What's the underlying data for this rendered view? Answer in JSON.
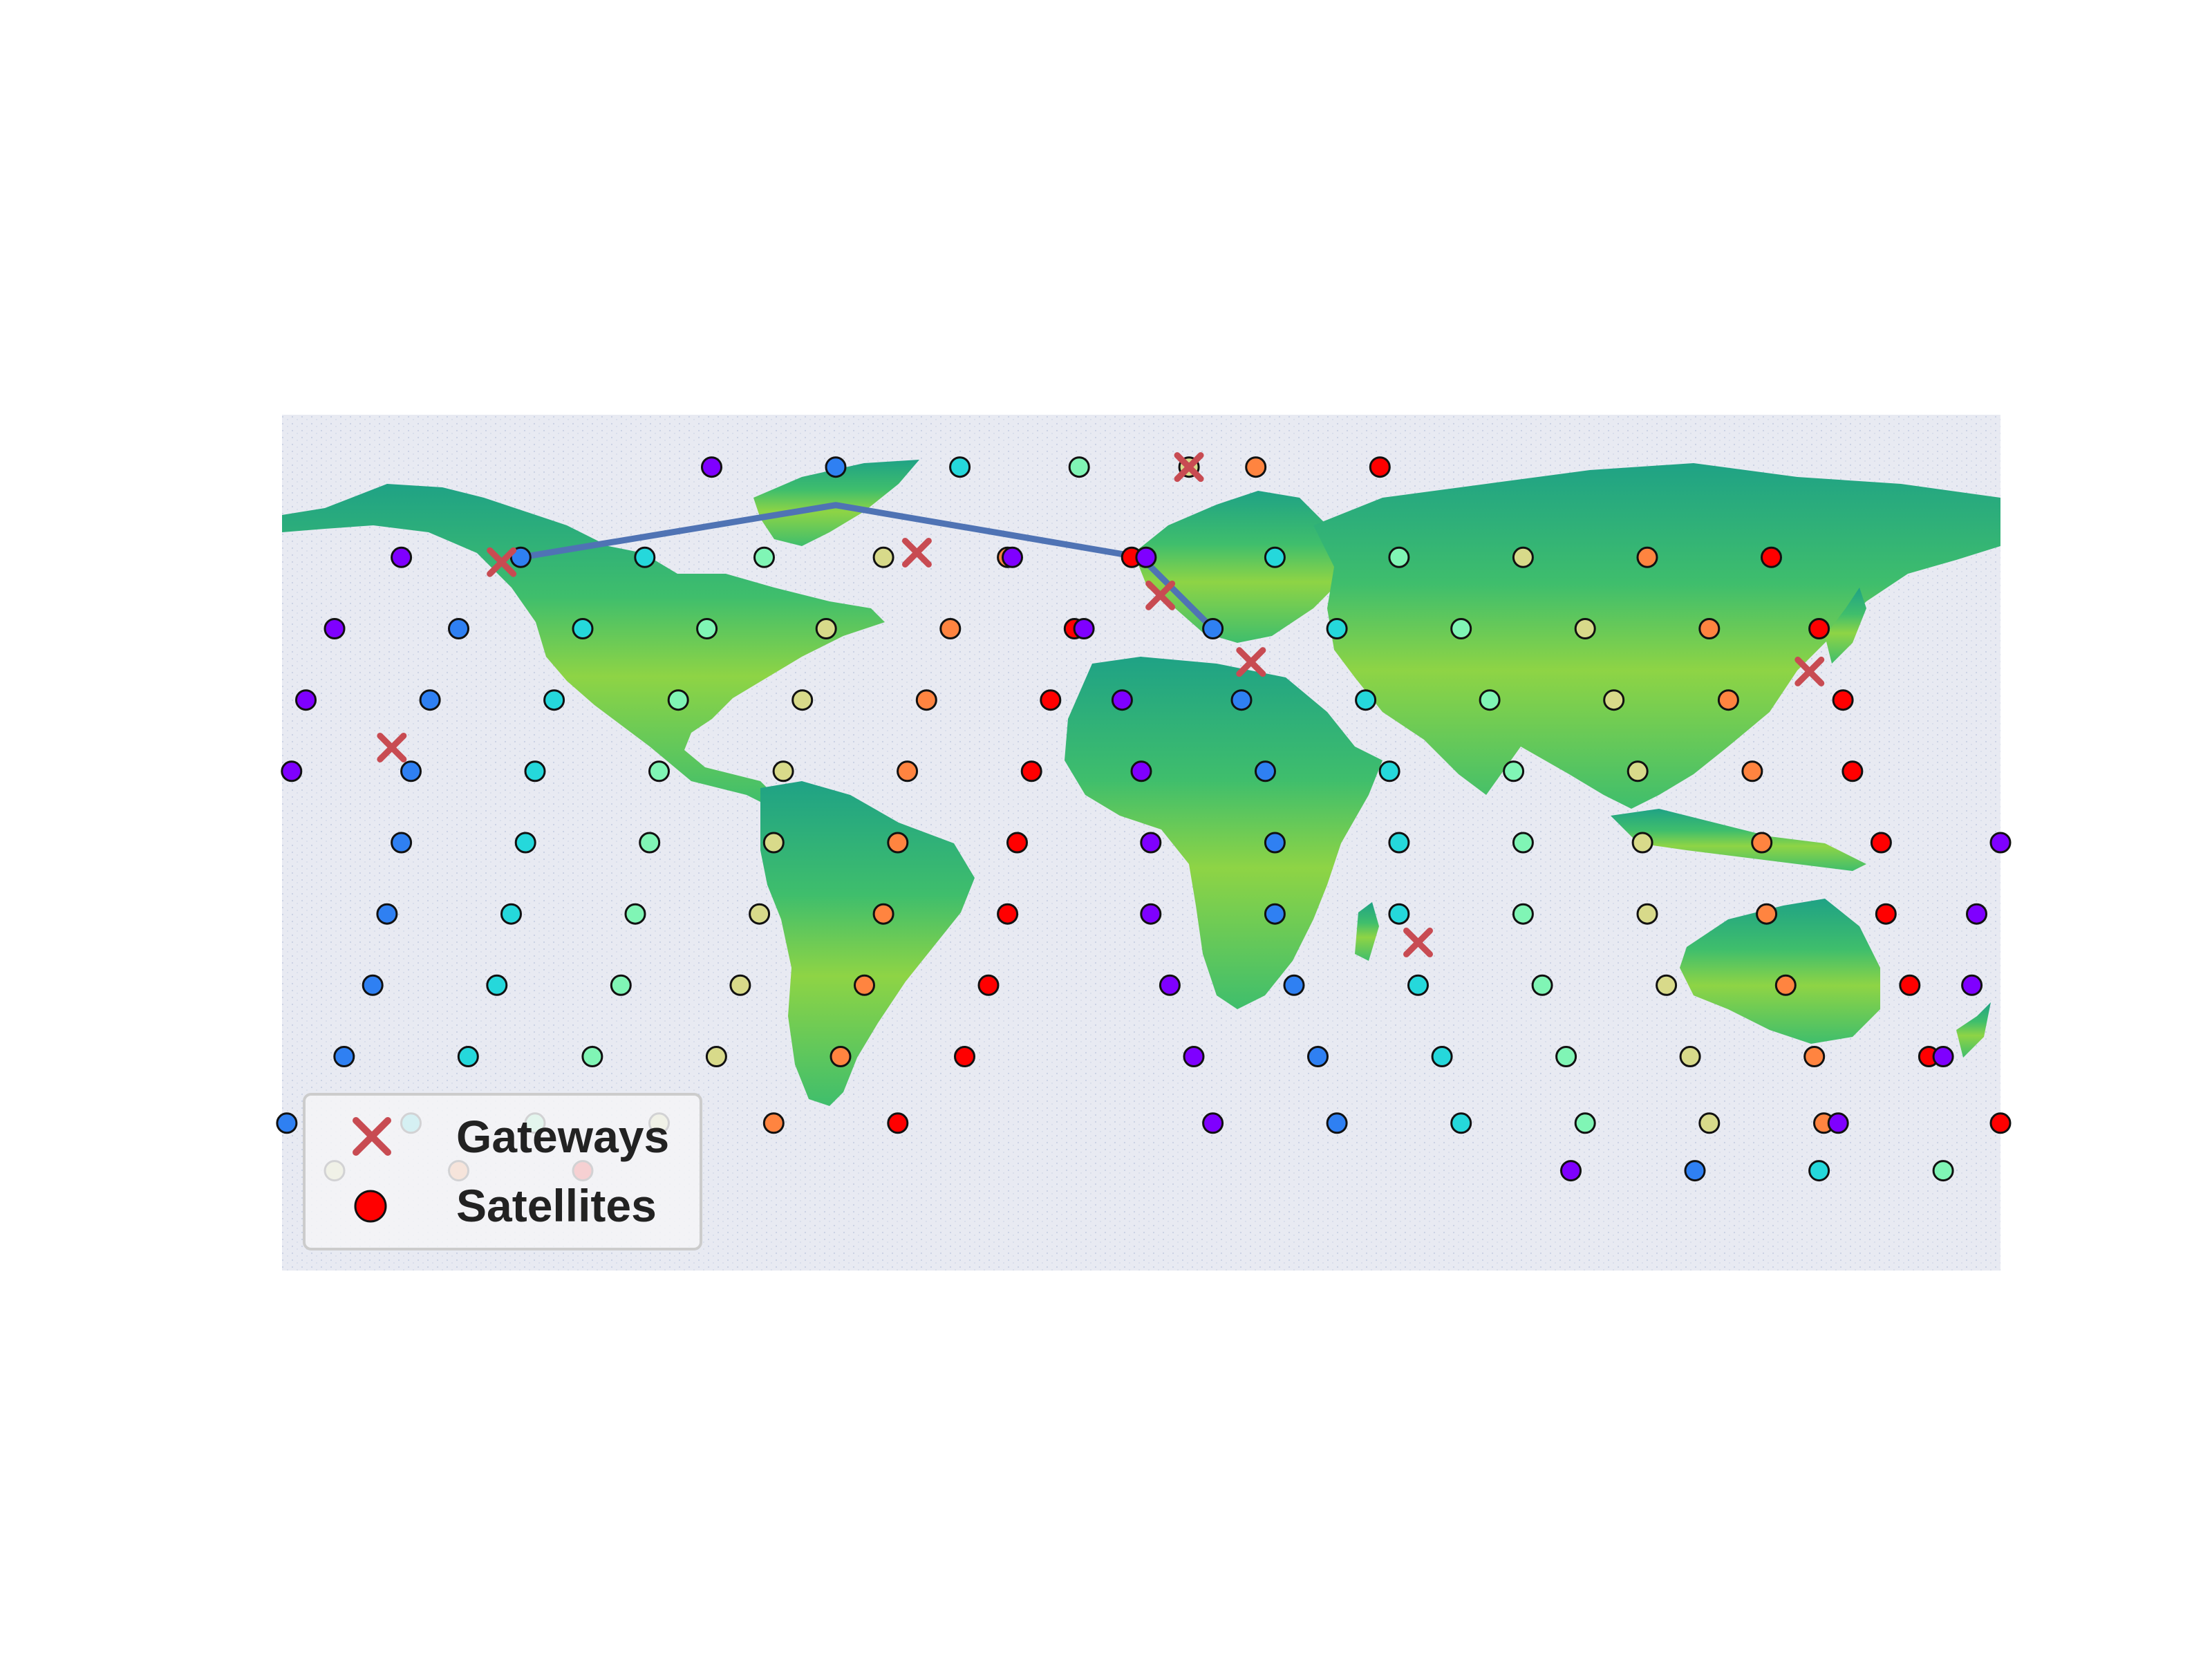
{
  "legend": {
    "gateways_label": "Gateways",
    "satellites_label": "Satellites"
  },
  "colors": {
    "background": "#e8eaf2",
    "land_dark": "#1fa285",
    "land_mid": "#3fbe6c",
    "land_light": "#a8d838",
    "gateway_marker": "#c84b52",
    "path_line": "#4f73b4",
    "satellite_outline": "#111111",
    "satellite_palette": [
      "#7f00ff",
      "#2f80f2",
      "#25d8db",
      "#80f5b5",
      "#d8da8a",
      "#ff8440",
      "#ff0000"
    ]
  },
  "icons": {
    "gateway": "x-mark",
    "satellite": "filled-circle"
  },
  "map": {
    "projection": "equirectangular",
    "lon_range": [
      -180,
      180
    ],
    "lat_range": [
      -90,
      90
    ],
    "gateways": [
      {
        "lon": -134,
        "lat": 59
      },
      {
        "lon": -47,
        "lat": 61
      },
      {
        "lon": 10,
        "lat": 79
      },
      {
        "lon": 4,
        "lat": 52
      },
      {
        "lon": 23,
        "lat": 38
      },
      {
        "lon": 58,
        "lat": -21
      },
      {
        "lon": 140,
        "lat": 36
      },
      {
        "lon": -157,
        "lat": 20
      }
    ],
    "route": [
      {
        "lon": -130,
        "lat": 60
      },
      {
        "lon": -64,
        "lat": 71
      },
      {
        "lon": 0,
        "lat": 60
      },
      {
        "lon": 15,
        "lat": 45
      }
    ],
    "satellite_rows": [
      {
        "lat": 79,
        "lons": [
          -90,
          -64,
          -38,
          -13,
          10,
          24,
          50
        ],
        "colors": [
          0,
          1,
          2,
          3,
          4,
          5,
          6
        ]
      },
      {
        "lat": 60,
        "lons": [
          -155,
          -130,
          -104,
          -79,
          -54,
          -28,
          -27,
          -2,
          1,
          28,
          54,
          80,
          106,
          132
        ],
        "colors": [
          0,
          1,
          2,
          3,
          4,
          5,
          0,
          6,
          0,
          2,
          3,
          4,
          5,
          6
        ]
      },
      {
        "lat": 45,
        "lons": [
          -169,
          -143,
          -117,
          -91,
          -66,
          -40,
          -14,
          -12,
          15,
          41,
          67,
          93,
          119,
          142
        ],
        "colors": [
          0,
          1,
          2,
          3,
          4,
          5,
          6,
          0,
          1,
          2,
          3,
          4,
          5,
          6
        ]
      },
      {
        "lat": 30,
        "lons": [
          -175,
          -149,
          -123,
          -97,
          -71,
          -45,
          -19,
          -4,
          21,
          47,
          73,
          99,
          123,
          147
        ],
        "colors": [
          0,
          1,
          2,
          3,
          4,
          5,
          6,
          0,
          1,
          2,
          3,
          4,
          5,
          6
        ]
      },
      {
        "lat": 15,
        "lons": [
          -178,
          -153,
          -127,
          -101,
          -75,
          -49,
          -23,
          0,
          26,
          52,
          78,
          104,
          128,
          149
        ],
        "colors": [
          0,
          1,
          2,
          3,
          4,
          5,
          6,
          0,
          1,
          2,
          3,
          4,
          5,
          6
        ]
      },
      {
        "lat": 0,
        "lons": [
          -155,
          -129,
          -103,
          -77,
          -51,
          -26,
          2,
          28,
          54,
          80,
          105,
          130,
          155,
          180
        ],
        "colors": [
          1,
          2,
          3,
          4,
          5,
          6,
          0,
          1,
          2,
          3,
          4,
          5,
          6,
          0
        ]
      },
      {
        "lat": -15,
        "lons": [
          -158,
          -132,
          -106,
          -80,
          -54,
          -28,
          2,
          28,
          54,
          80,
          106,
          131,
          156,
          175
        ],
        "colors": [
          1,
          2,
          3,
          4,
          5,
          6,
          0,
          1,
          2,
          3,
          4,
          5,
          6,
          0
        ]
      },
      {
        "lat": -30,
        "lons": [
          -161,
          -135,
          -109,
          -84,
          -58,
          -32,
          6,
          32,
          58,
          84,
          110,
          135,
          161,
          174
        ],
        "colors": [
          1,
          2,
          3,
          4,
          5,
          6,
          0,
          1,
          2,
          3,
          4,
          5,
          6,
          0
        ]
      },
      {
        "lat": -45,
        "lons": [
          -167,
          -141,
          -115,
          -89,
          -63,
          -37,
          11,
          37,
          63,
          89,
          115,
          141,
          165,
          168
        ],
        "colors": [
          1,
          2,
          3,
          4,
          5,
          6,
          0,
          1,
          2,
          3,
          4,
          5,
          6,
          0
        ]
      },
      {
        "lat": -59,
        "lons": [
          -179,
          -153,
          -127,
          -101,
          -77,
          -51,
          15,
          41,
          67,
          93,
          119,
          143,
          146,
          180
        ],
        "colors": [
          1,
          2,
          3,
          4,
          5,
          6,
          0,
          1,
          2,
          3,
          4,
          5,
          0,
          6
        ]
      },
      {
        "lat": -69,
        "lons": [
          -169,
          -143,
          -117,
          90,
          116,
          142,
          168
        ],
        "colors": [
          4,
          5,
          6,
          0,
          1,
          2,
          3
        ]
      }
    ]
  }
}
